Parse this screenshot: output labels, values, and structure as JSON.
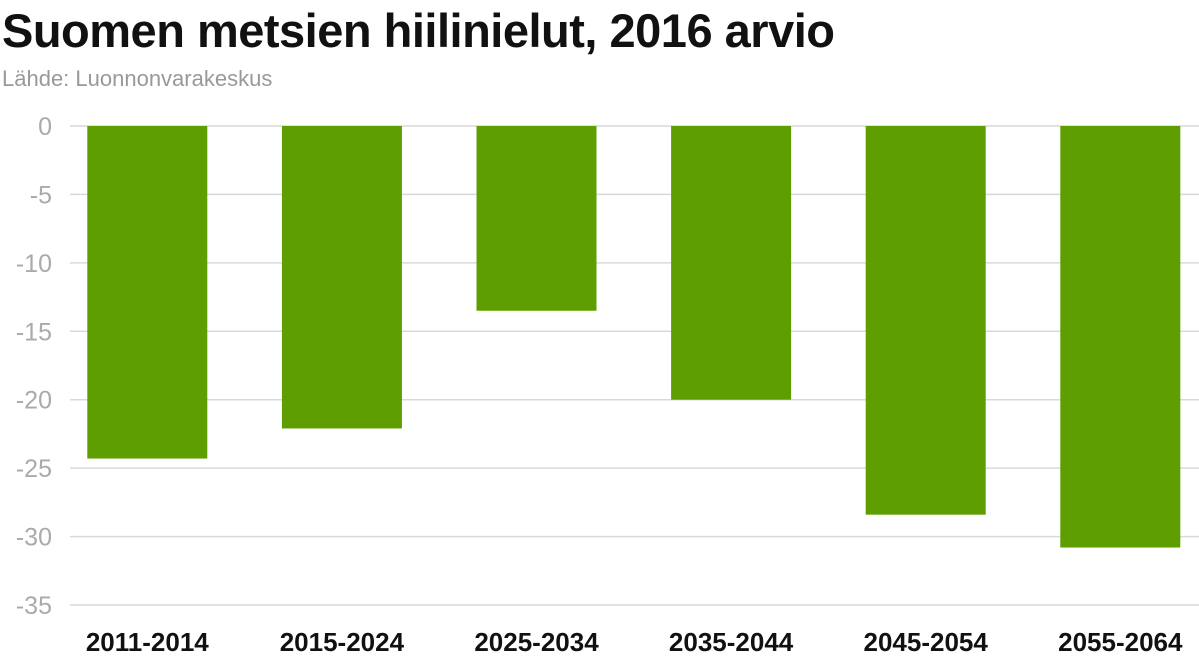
{
  "title": "Suomen metsien hiilinielut, 2016 arvio",
  "subtitle": "Lähde: Luonnonvarakeskus",
  "colors": {
    "bar": "#5f9e00",
    "grid": "#d9d9d9",
    "tick_text": "#aaaaaa",
    "category_text": "#111111"
  },
  "chart_data": {
    "type": "bar",
    "categories": [
      "2011-2014",
      "2015-2024",
      "2025-2034",
      "2035-2044",
      "2045-2054",
      "2055-2064"
    ],
    "values": [
      -24.3,
      -22.1,
      -13.5,
      -20.0,
      -28.4,
      -30.8
    ],
    "yticks": [
      "0",
      "-5",
      "-10",
      "-15",
      "-20",
      "-25",
      "-30",
      "-35"
    ],
    "ylim": [
      -35,
      0
    ],
    "grid": true,
    "legend": false
  }
}
